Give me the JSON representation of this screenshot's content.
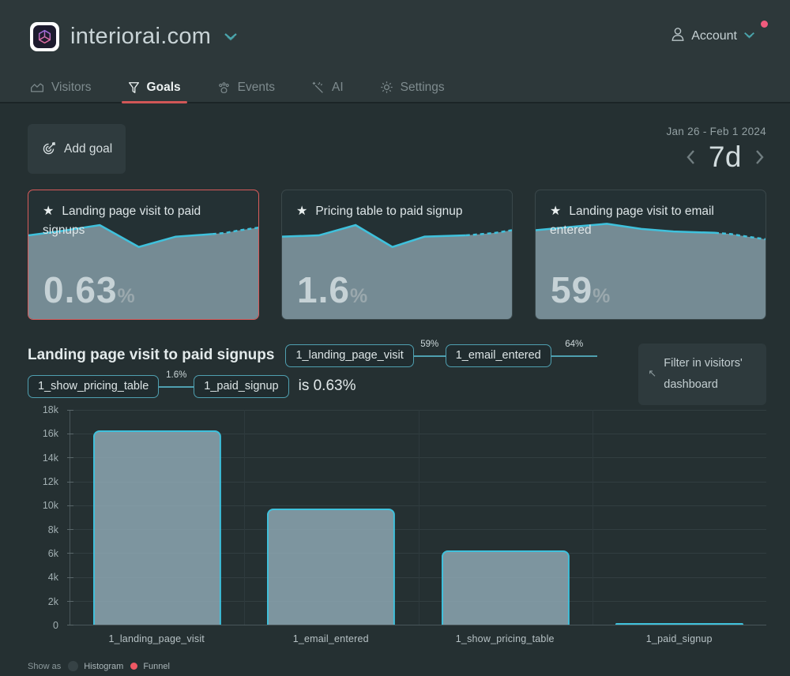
{
  "header": {
    "site_name": "interiorai.com",
    "account_label": "Account"
  },
  "tabs": [
    {
      "label": "Visitors",
      "active": false
    },
    {
      "label": "Goals",
      "active": true
    },
    {
      "label": "Events",
      "active": false
    },
    {
      "label": "AI",
      "active": false
    },
    {
      "label": "Settings",
      "active": false
    }
  ],
  "toolbar": {
    "add_goal_label": "Add goal",
    "date_range": "Jan 26 - Feb 1 2024",
    "period": "7d"
  },
  "goal_cards": [
    {
      "title": "Landing page visit to paid signups",
      "value": "0.63",
      "unit": "%",
      "selected": true,
      "star": "★",
      "spark_solid": [
        [
          0,
          35
        ],
        [
          13,
          32
        ],
        [
          31,
          27
        ],
        [
          48,
          44
        ],
        [
          64,
          36
        ],
        [
          80,
          34
        ]
      ],
      "spark_dashed": [
        [
          80,
          34
        ],
        [
          86,
          33
        ],
        [
          92,
          31
        ],
        [
          100,
          29
        ]
      ]
    },
    {
      "title": "Pricing table to paid signup",
      "value": "1.6",
      "unit": "%",
      "selected": false,
      "star": "★",
      "spark_solid": [
        [
          0,
          36
        ],
        [
          16,
          35
        ],
        [
          32,
          27
        ],
        [
          48,
          44
        ],
        [
          62,
          36
        ],
        [
          80,
          35
        ]
      ],
      "spark_dashed": [
        [
          80,
          35
        ],
        [
          87,
          34
        ],
        [
          93,
          33
        ],
        [
          100,
          31
        ]
      ]
    },
    {
      "title": "Landing page visit to email entered",
      "value": "59",
      "unit": "%",
      "selected": false,
      "star": "★",
      "spark_solid": [
        [
          0,
          31
        ],
        [
          18,
          28
        ],
        [
          31,
          26
        ],
        [
          46,
          30
        ],
        [
          60,
          32
        ],
        [
          78,
          33
        ]
      ],
      "spark_dashed": [
        [
          78,
          33
        ],
        [
          85,
          34
        ],
        [
          92,
          36
        ],
        [
          100,
          38
        ]
      ]
    }
  ],
  "funnel": {
    "title": "Landing page visit to paid signups",
    "steps": [
      "1_landing_page_visit",
      "1_email_entered",
      "1_show_pricing_table",
      "1_paid_signup"
    ],
    "conversions": [
      "59%",
      "64%",
      "1.6%"
    ],
    "result_text": "is 0.63%",
    "filter_line1": "Filter in visitors'",
    "filter_line2": "dashboard",
    "filter_arrow": "↖"
  },
  "chart_data": {
    "type": "bar",
    "title": "Goal funnel: Landing page visit to paid signups",
    "categories": [
      "1_landing_page_visit",
      "1_email_entered",
      "1_show_pricing_table",
      "1_paid_signup"
    ],
    "values": [
      16300,
      9700,
      6200,
      100
    ],
    "xlabel": "",
    "ylabel": "",
    "ylim": [
      0,
      18000
    ],
    "yticks": [
      "18k",
      "16k",
      "14k",
      "12k",
      "10k",
      "8k",
      "6k",
      "4k",
      "2k",
      "0"
    ],
    "grid": "horizontal-and-category-separators",
    "legend": "none"
  },
  "footer": {
    "show_as_label": "Show as",
    "options": [
      {
        "label": "Histogram",
        "selected": false
      },
      {
        "label": "Funnel",
        "selected": true
      }
    ]
  },
  "colors": {
    "accent_red": "#d15757",
    "card_selected_border": "#d85b5b",
    "spark_line": "#3fc1dc",
    "spark_fill": "rgba(148,175,186,0.72)",
    "bar_fill": "rgba(148,175,186,0.80)",
    "bar_stroke": "#3fc1dc",
    "pill_border": "#4f9fb0",
    "connector_line": "#4f9fb0",
    "radio_selected": "#ef5864",
    "notification_dot": "#f15b7d",
    "chevron_teal": "#4ba6ad"
  }
}
